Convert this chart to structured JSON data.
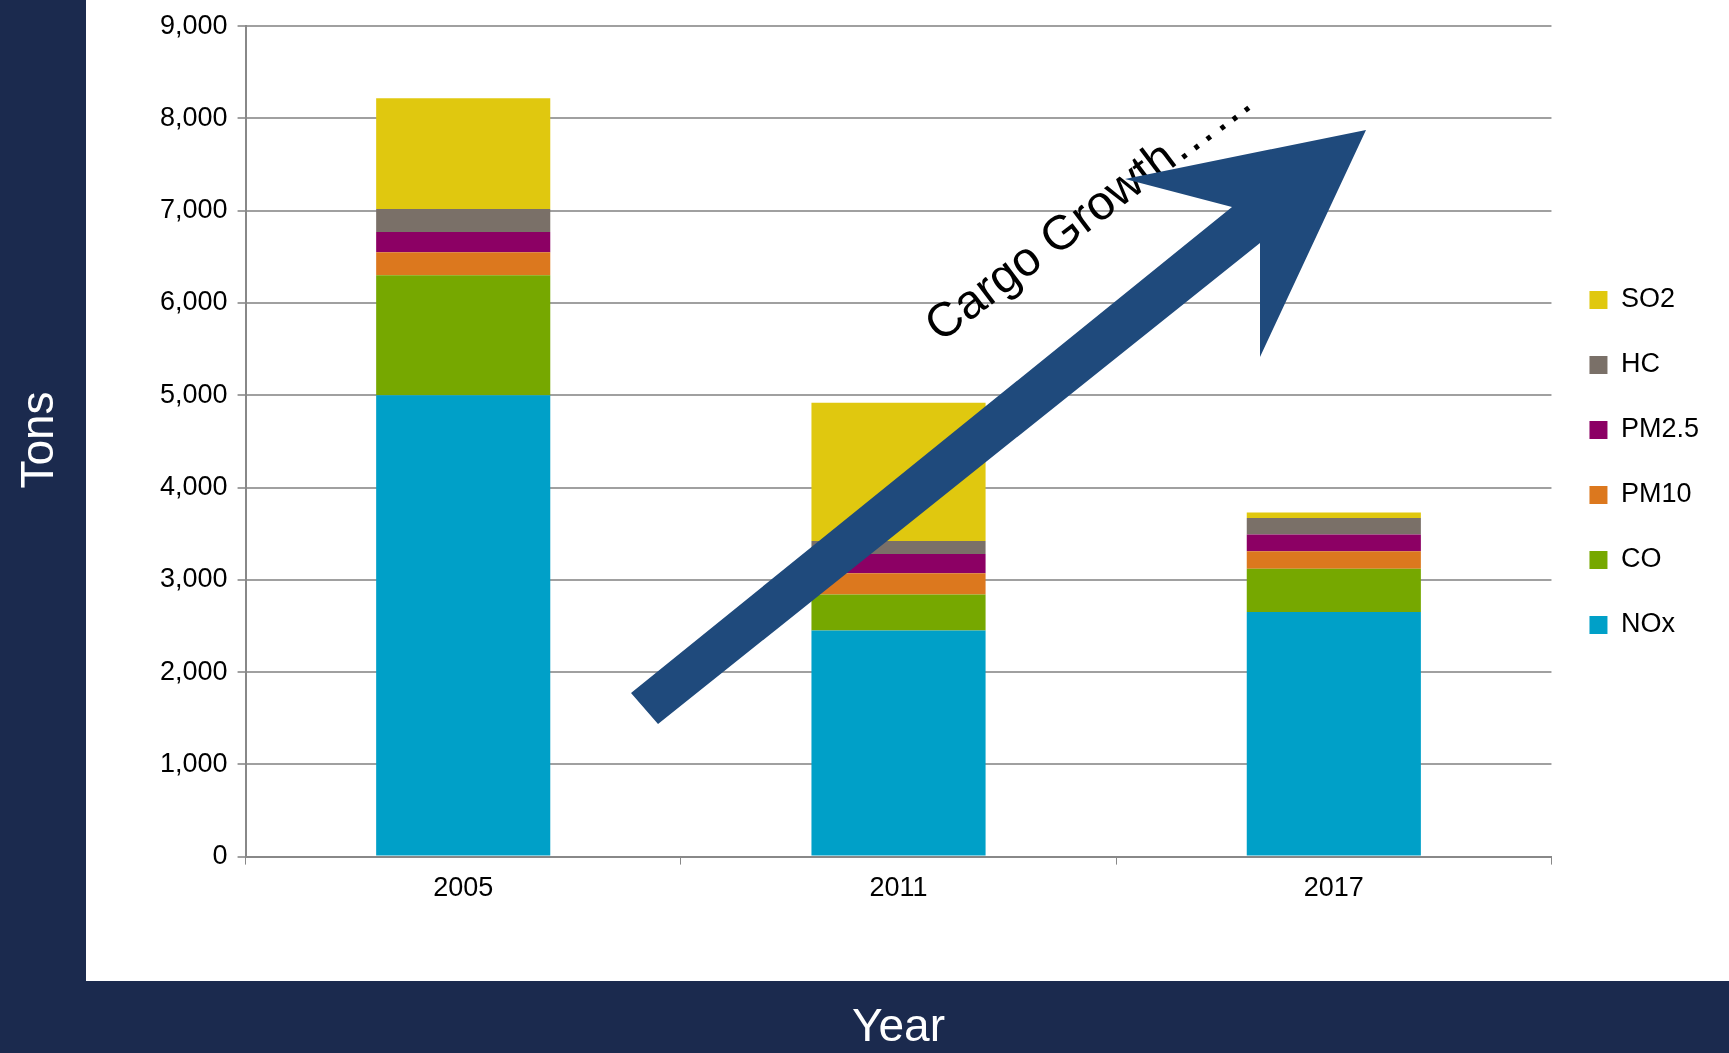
{
  "chart_data": {
    "type": "bar",
    "stacked": true,
    "xlabel": "Year",
    "ylabel": "Tons",
    "categories": [
      "2005",
      "2011",
      "2017"
    ],
    "series": [
      {
        "name": "NOx",
        "color": "#00a0c8",
        "values": [
          5000,
          2450,
          2650
        ]
      },
      {
        "name": "CO",
        "color": "#76a800",
        "values": [
          1300,
          390,
          470
        ]
      },
      {
        "name": "PM10",
        "color": "#dc781e",
        "values": [
          250,
          230,
          190
        ]
      },
      {
        "name": "PM2.5",
        "color": "#8c0064",
        "values": [
          220,
          210,
          180
        ]
      },
      {
        "name": "HC",
        "color": "#7a7068",
        "values": [
          250,
          140,
          180
        ]
      },
      {
        "name": "SO2",
        "color": "#e0c80f",
        "values": [
          1200,
          1500,
          60
        ]
      }
    ],
    "ylim": [
      0,
      9000
    ],
    "yticks": [
      {
        "value": 0,
        "label": "0"
      },
      {
        "value": 1000,
        "label": "1,000"
      },
      {
        "value": 2000,
        "label": "2,000"
      },
      {
        "value": 3000,
        "label": "3,000"
      },
      {
        "value": 4000,
        "label": "4,000"
      },
      {
        "value": 5000,
        "label": "5,000"
      },
      {
        "value": 6000,
        "label": "6,000"
      },
      {
        "value": 7000,
        "label": "7,000"
      },
      {
        "value": 8000,
        "label": "8,000"
      },
      {
        "value": 9000,
        "label": "9,000"
      }
    ],
    "grid": "y",
    "legend": "right",
    "annotations": [
      "Cargo Growth……"
    ]
  }
}
